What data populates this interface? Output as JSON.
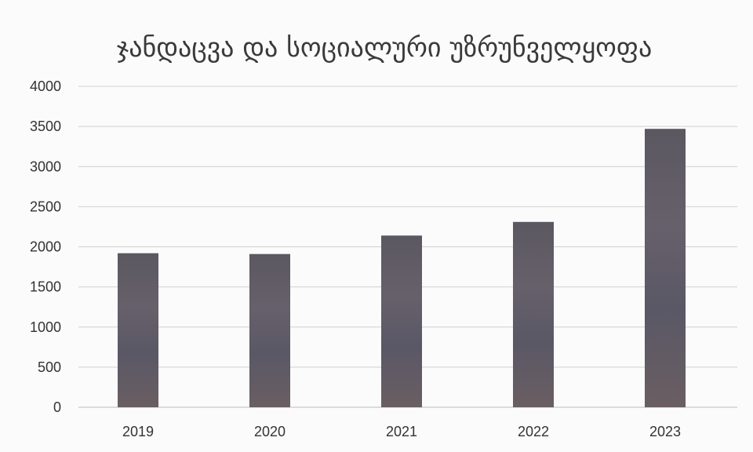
{
  "chart_data": {
    "type": "bar",
    "title": "ჯანდაცვა და სოციალური უზრუნველყოფა",
    "categories": [
      "2019",
      "2020",
      "2021",
      "2022",
      "2023"
    ],
    "series": [
      {
        "values": [
          1920,
          1910,
          2140,
          2310,
          3470
        ]
      }
    ],
    "ylim": [
      0,
      4000
    ],
    "yticks": [
      0,
      500,
      1000,
      1500,
      2000,
      2500,
      3000,
      3500,
      4000
    ],
    "grid": true,
    "legend": "none",
    "colors": {
      "bar": "#5e5a66",
      "grid": "#d0d0d0",
      "text": "#333333"
    }
  }
}
